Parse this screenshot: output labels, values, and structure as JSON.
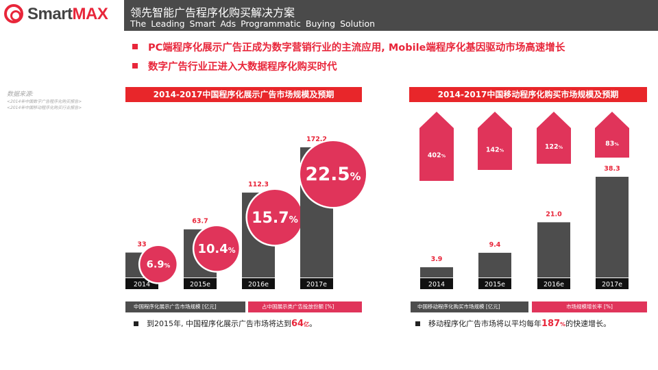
{
  "brand": {
    "name_part1": "Smart",
    "name_part2": "MAX"
  },
  "header": {
    "title_cn": "领先智能广告程序化购买解决方案",
    "title_en": "The Leading Smart Ads Programmatic Buying Solution"
  },
  "bullets": [
    "PC端程序化展示广告正成为数字营销行业的主流应用, Mobile端程序化基因驱动市场高速增长",
    "数字广告行业正进入大数据程序化购买时代"
  ],
  "source": {
    "label": "数据来源:",
    "items": [
      "<2014年中国数字广告程序化购买报告>",
      "<2014年中国移动程序化购买行业报告>"
    ]
  },
  "colors": {
    "accent": "#e8263a",
    "bar": "#4d4d4d",
    "bubble": "#e0345a"
  },
  "chart_data": [
    {
      "type": "bar",
      "title": "2014-2017中国程序化展示广告市场规模及预期",
      "categories": [
        "2014",
        "2015e",
        "2016e",
        "2017e"
      ],
      "series": [
        {
          "name": "中国程序化展示广告市场规模 [亿元]",
          "values": [
            33,
            63.7,
            112.3,
            172.2
          ],
          "labels": [
            "33",
            "63.7",
            "112.3",
            "172.2"
          ]
        },
        {
          "name": "占中国展示类广告投放份额 [%]",
          "values": [
            6.9,
            10.4,
            15.7,
            22.5
          ],
          "labels": [
            "6.9",
            "10.4",
            "15.7",
            "22.5"
          ],
          "unit": "%"
        }
      ],
      "ylim": [
        0,
        180
      ],
      "footnote": {
        "pre": "到2015年, 中国程序化展示广告市场将达到",
        "highlight": "64",
        "unit": "亿",
        "post": "。"
      }
    },
    {
      "type": "bar",
      "title": "2014-2017中国移动程序化购买市场规模及预期",
      "categories": [
        "2014",
        "2015e",
        "2016e",
        "2017e"
      ],
      "series": [
        {
          "name": "中国移动程序化购买市场规模 [亿元]",
          "values": [
            3.9,
            9.4,
            21.0,
            38.3
          ],
          "labels": [
            "3.9",
            "9.4",
            "21.0",
            "38.3"
          ]
        },
        {
          "name": "市场规模增长率 [%]",
          "values": [
            402,
            142,
            122,
            83
          ],
          "labels": [
            "402",
            "142",
            "122",
            "83"
          ],
          "unit": "%"
        }
      ],
      "ylim": [
        0,
        40
      ],
      "footnote": {
        "pre": "移动程序化广告市场将以平均每年",
        "highlight": "187",
        "unit": "%",
        "post": "的快速增长。"
      }
    }
  ]
}
